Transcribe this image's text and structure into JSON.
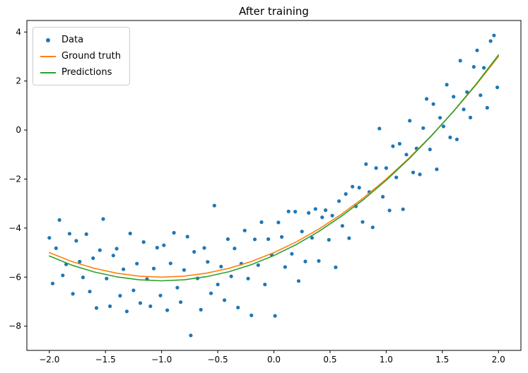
{
  "chart_data": {
    "type": "scatter",
    "title": "After training",
    "xlabel": "",
    "ylabel": "",
    "xlim": [
      -2.2,
      2.2
    ],
    "ylim": [
      -8.99,
      4.47
    ],
    "grid": false,
    "x_ticks": {
      "values": [
        -2.0,
        -1.5,
        -1.0,
        -0.5,
        0.0,
        0.5,
        1.0,
        1.5,
        2.0
      ],
      "labels": [
        "−2.0",
        "−1.5",
        "−1.0",
        "−0.5",
        "0.0",
        "0.5",
        "1.0",
        "1.5",
        "2.0"
      ]
    },
    "y_ticks": {
      "values": [
        -8,
        -6,
        -4,
        -2,
        0,
        2,
        4
      ],
      "labels": [
        "−8",
        "−6",
        "−4",
        "−2",
        "0",
        "2",
        "4"
      ]
    },
    "legend": {
      "position": "upper left",
      "entries": [
        {
          "label": "Data",
          "marker": "dot",
          "color": "#1f77b4"
        },
        {
          "label": "Ground truth",
          "marker": "line",
          "color": "#ff7f0e"
        },
        {
          "label": "Predictions",
          "marker": "line",
          "color": "#2ca02c"
        }
      ]
    },
    "scatter": {
      "name": "Data",
      "color": "#1f77b4",
      "points": [
        [
          -2.0,
          -4.4
        ],
        [
          -1.97,
          -6.26
        ],
        [
          -1.94,
          -4.82
        ],
        [
          -1.91,
          -3.67
        ],
        [
          -1.88,
          -5.93
        ],
        [
          -1.85,
          -5.48
        ],
        [
          -1.82,
          -4.23
        ],
        [
          -1.79,
          -6.68
        ],
        [
          -1.76,
          -4.52
        ],
        [
          -1.73,
          -5.37
        ],
        [
          -1.7,
          -6.01
        ],
        [
          -1.67,
          -4.25
        ],
        [
          -1.64,
          -6.59
        ],
        [
          -1.61,
          -5.23
        ],
        [
          -1.58,
          -7.26
        ],
        [
          -1.55,
          -4.9
        ],
        [
          -1.52,
          -3.63
        ],
        [
          -1.49,
          -6.06
        ],
        [
          -1.46,
          -7.19
        ],
        [
          -1.43,
          -5.12
        ],
        [
          -1.4,
          -4.84
        ],
        [
          -1.37,
          -6.76
        ],
        [
          -1.34,
          -5.68
        ],
        [
          -1.31,
          -7.4
        ],
        [
          -1.28,
          -4.22
        ],
        [
          -1.25,
          -6.54
        ],
        [
          -1.22,
          -5.45
        ],
        [
          -1.19,
          -7.06
        ],
        [
          -1.16,
          -4.57
        ],
        [
          -1.13,
          -6.08
        ],
        [
          -1.1,
          -7.19
        ],
        [
          -1.07,
          -5.65
        ],
        [
          -1.04,
          -4.8
        ],
        [
          -1.01,
          -6.75
        ],
        [
          -0.98,
          -4.7
        ],
        [
          -0.95,
          -7.35
        ],
        [
          -0.92,
          -5.44
        ],
        [
          -0.89,
          -4.19
        ],
        [
          -0.86,
          -6.43
        ],
        [
          -0.83,
          -7.02
        ],
        [
          -0.8,
          -5.71
        ],
        [
          -0.77,
          -4.35
        ],
        [
          -0.74,
          -8.38
        ],
        [
          -0.71,
          -4.97
        ],
        [
          -0.68,
          -6.05
        ],
        [
          -0.65,
          -7.33
        ],
        [
          -0.62,
          -4.81
        ],
        [
          -0.59,
          -5.38
        ],
        [
          -0.56,
          -6.66
        ],
        [
          -0.53,
          -3.08
        ],
        [
          -0.5,
          -6.3
        ],
        [
          -0.47,
          -5.57
        ],
        [
          -0.44,
          -6.94
        ],
        [
          -0.41,
          -4.45
        ],
        [
          -0.38,
          -5.97
        ],
        [
          -0.35,
          -4.83
        ],
        [
          -0.32,
          -7.24
        ],
        [
          -0.29,
          -5.45
        ],
        [
          -0.26,
          -4.1
        ],
        [
          -0.23,
          -6.06
        ],
        [
          -0.2,
          -7.56
        ],
        [
          -0.17,
          -4.46
        ],
        [
          -0.14,
          -5.51
        ],
        [
          -0.11,
          -3.76
        ],
        [
          -0.08,
          -6.3
        ],
        [
          -0.05,
          -4.45
        ],
        [
          -0.02,
          -5.09
        ],
        [
          0.01,
          -7.58
        ],
        [
          0.04,
          -3.77
        ],
        [
          0.07,
          -4.36
        ],
        [
          0.1,
          -5.59
        ],
        [
          0.13,
          -3.32
        ],
        [
          0.16,
          -5.05
        ],
        [
          0.19,
          -3.33
        ],
        [
          0.22,
          -6.16
        ],
        [
          0.25,
          -4.14
        ],
        [
          0.28,
          -5.36
        ],
        [
          0.31,
          -3.38
        ],
        [
          0.34,
          -4.4
        ],
        [
          0.37,
          -3.22
        ],
        [
          0.4,
          -5.34
        ],
        [
          0.43,
          -3.56
        ],
        [
          0.46,
          -3.27
        ],
        [
          0.49,
          -4.48
        ],
        [
          0.52,
          -3.49
        ],
        [
          0.55,
          -5.6
        ],
        [
          0.58,
          -2.9
        ],
        [
          0.61,
          -3.91
        ],
        [
          0.64,
          -2.61
        ],
        [
          0.67,
          -4.41
        ],
        [
          0.7,
          -2.31
        ],
        [
          0.73,
          -3.11
        ],
        [
          0.76,
          -2.35
        ],
        [
          0.79,
          -3.75
        ],
        [
          0.82,
          -1.39
        ],
        [
          0.85,
          -2.53
        ],
        [
          0.88,
          -3.97
        ],
        [
          0.91,
          -1.55
        ],
        [
          0.94,
          0.06
        ],
        [
          0.97,
          -2.72
        ],
        [
          1.0,
          -1.55
        ],
        [
          1.03,
          -3.28
        ],
        [
          1.06,
          -0.66
        ],
        [
          1.09,
          -1.93
        ],
        [
          1.12,
          -0.56
        ],
        [
          1.15,
          -3.23
        ],
        [
          1.18,
          -1.0
        ],
        [
          1.21,
          0.38
        ],
        [
          1.24,
          -1.73
        ],
        [
          1.27,
          -0.75
        ],
        [
          1.3,
          -1.81
        ],
        [
          1.33,
          0.08
        ],
        [
          1.36,
          1.27
        ],
        [
          1.39,
          -0.79
        ],
        [
          1.42,
          1.06
        ],
        [
          1.45,
          -1.6
        ],
        [
          1.48,
          0.5
        ],
        [
          1.51,
          0.15
        ],
        [
          1.54,
          1.85
        ],
        [
          1.57,
          -0.3
        ],
        [
          1.6,
          1.36
        ],
        [
          1.63,
          -0.38
        ],
        [
          1.66,
          2.83
        ],
        [
          1.69,
          0.84
        ],
        [
          1.72,
          1.55
        ],
        [
          1.75,
          0.51
        ],
        [
          1.78,
          2.58
        ],
        [
          1.81,
          3.25
        ],
        [
          1.84,
          1.42
        ],
        [
          1.87,
          2.54
        ],
        [
          1.9,
          0.91
        ],
        [
          1.93,
          3.63
        ],
        [
          1.96,
          3.86
        ],
        [
          1.99,
          1.74
        ]
      ]
    },
    "series": [
      {
        "name": "Ground truth",
        "color": "#ff7f0e",
        "x": [
          -2.0,
          -1.8,
          -1.6,
          -1.4,
          -1.2,
          -1.0,
          -0.8,
          -0.6,
          -0.4,
          -0.2,
          0.0,
          0.2,
          0.4,
          0.6,
          0.8,
          1.0,
          1.2,
          1.4,
          1.6,
          1.8,
          2.0
        ],
        "y": [
          -5.0,
          -5.36,
          -5.64,
          -5.84,
          -5.96,
          -6.0,
          -5.96,
          -5.84,
          -5.64,
          -5.36,
          -5.0,
          -4.56,
          -4.04,
          -3.44,
          -2.76,
          -2.0,
          -1.16,
          -0.24,
          0.76,
          1.84,
          3.0
        ]
      },
      {
        "name": "Predictions",
        "color": "#2ca02c",
        "x": [
          -2.0,
          -1.8,
          -1.6,
          -1.4,
          -1.2,
          -1.0,
          -0.8,
          -0.6,
          -0.4,
          -0.2,
          0.0,
          0.2,
          0.4,
          0.6,
          0.8,
          1.0,
          1.2,
          1.4,
          1.6,
          1.8,
          2.0
        ],
        "y": [
          -5.14,
          -5.51,
          -5.79,
          -5.99,
          -6.11,
          -6.15,
          -6.11,
          -5.98,
          -5.78,
          -5.49,
          -5.12,
          -4.67,
          -4.14,
          -3.52,
          -2.83,
          -2.05,
          -1.19,
          -0.25,
          0.77,
          1.87,
          3.06
        ]
      }
    ]
  }
}
